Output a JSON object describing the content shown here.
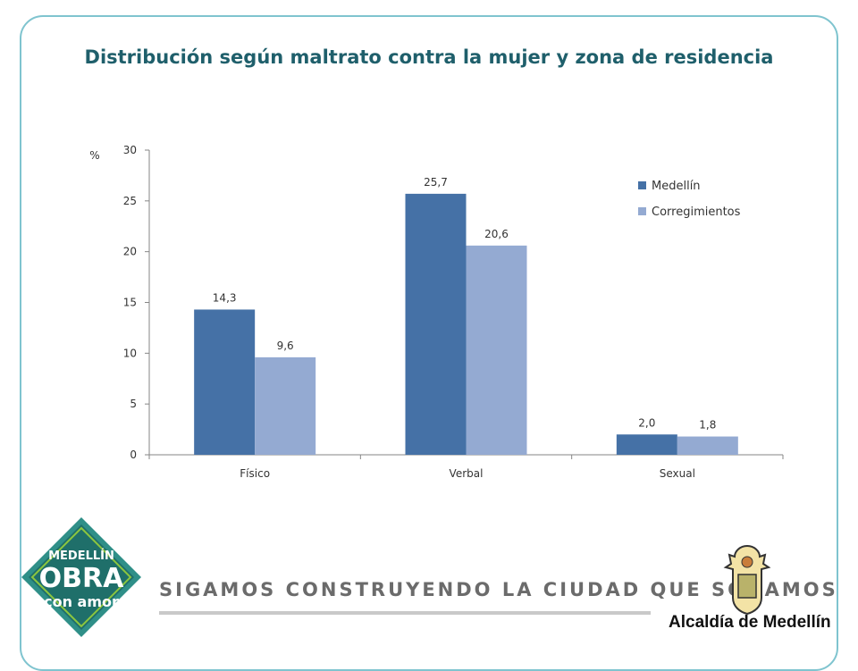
{
  "title": "Distribución según maltrato contra la mujer y zona de residencia",
  "chart_data": {
    "type": "bar",
    "title": "Distribución según maltrato contra la mujer y zona de residencia",
    "xlabel": "",
    "ylabel": "%",
    "ylim": [
      0,
      30
    ],
    "yticks": [
      0,
      5,
      10,
      15,
      20,
      25,
      30
    ],
    "categories": [
      "Físico",
      "Verbal",
      "Sexual"
    ],
    "series": [
      {
        "name": "Medellín",
        "values": [
          14.3,
          25.7,
          2.0
        ],
        "labels": [
          "14,3",
          "25,7",
          "2,0"
        ],
        "color": "#4571a6"
      },
      {
        "name": "Corregimientos",
        "values": [
          9.6,
          20.6,
          1.8
        ],
        "labels": [
          "9,6",
          "20,6",
          "1,8"
        ],
        "color": "#94aad2"
      }
    ],
    "legend": "top-right",
    "grid": false
  },
  "footer": {
    "tagline": "SIGAMOS CONSTRUYENDO LA CIUDAD QUE SOÑAMOS",
    "badge_line1": "MEDELLÍN",
    "badge_line2": "OBRA",
    "badge_line3": "con amor",
    "alcaldia": "Alcaldía de Medellín"
  },
  "colors": {
    "frame": "#7fc4cf",
    "title": "#1f5f6b",
    "badge": "#1f6f6a",
    "accent_green": "#8cc63f"
  }
}
